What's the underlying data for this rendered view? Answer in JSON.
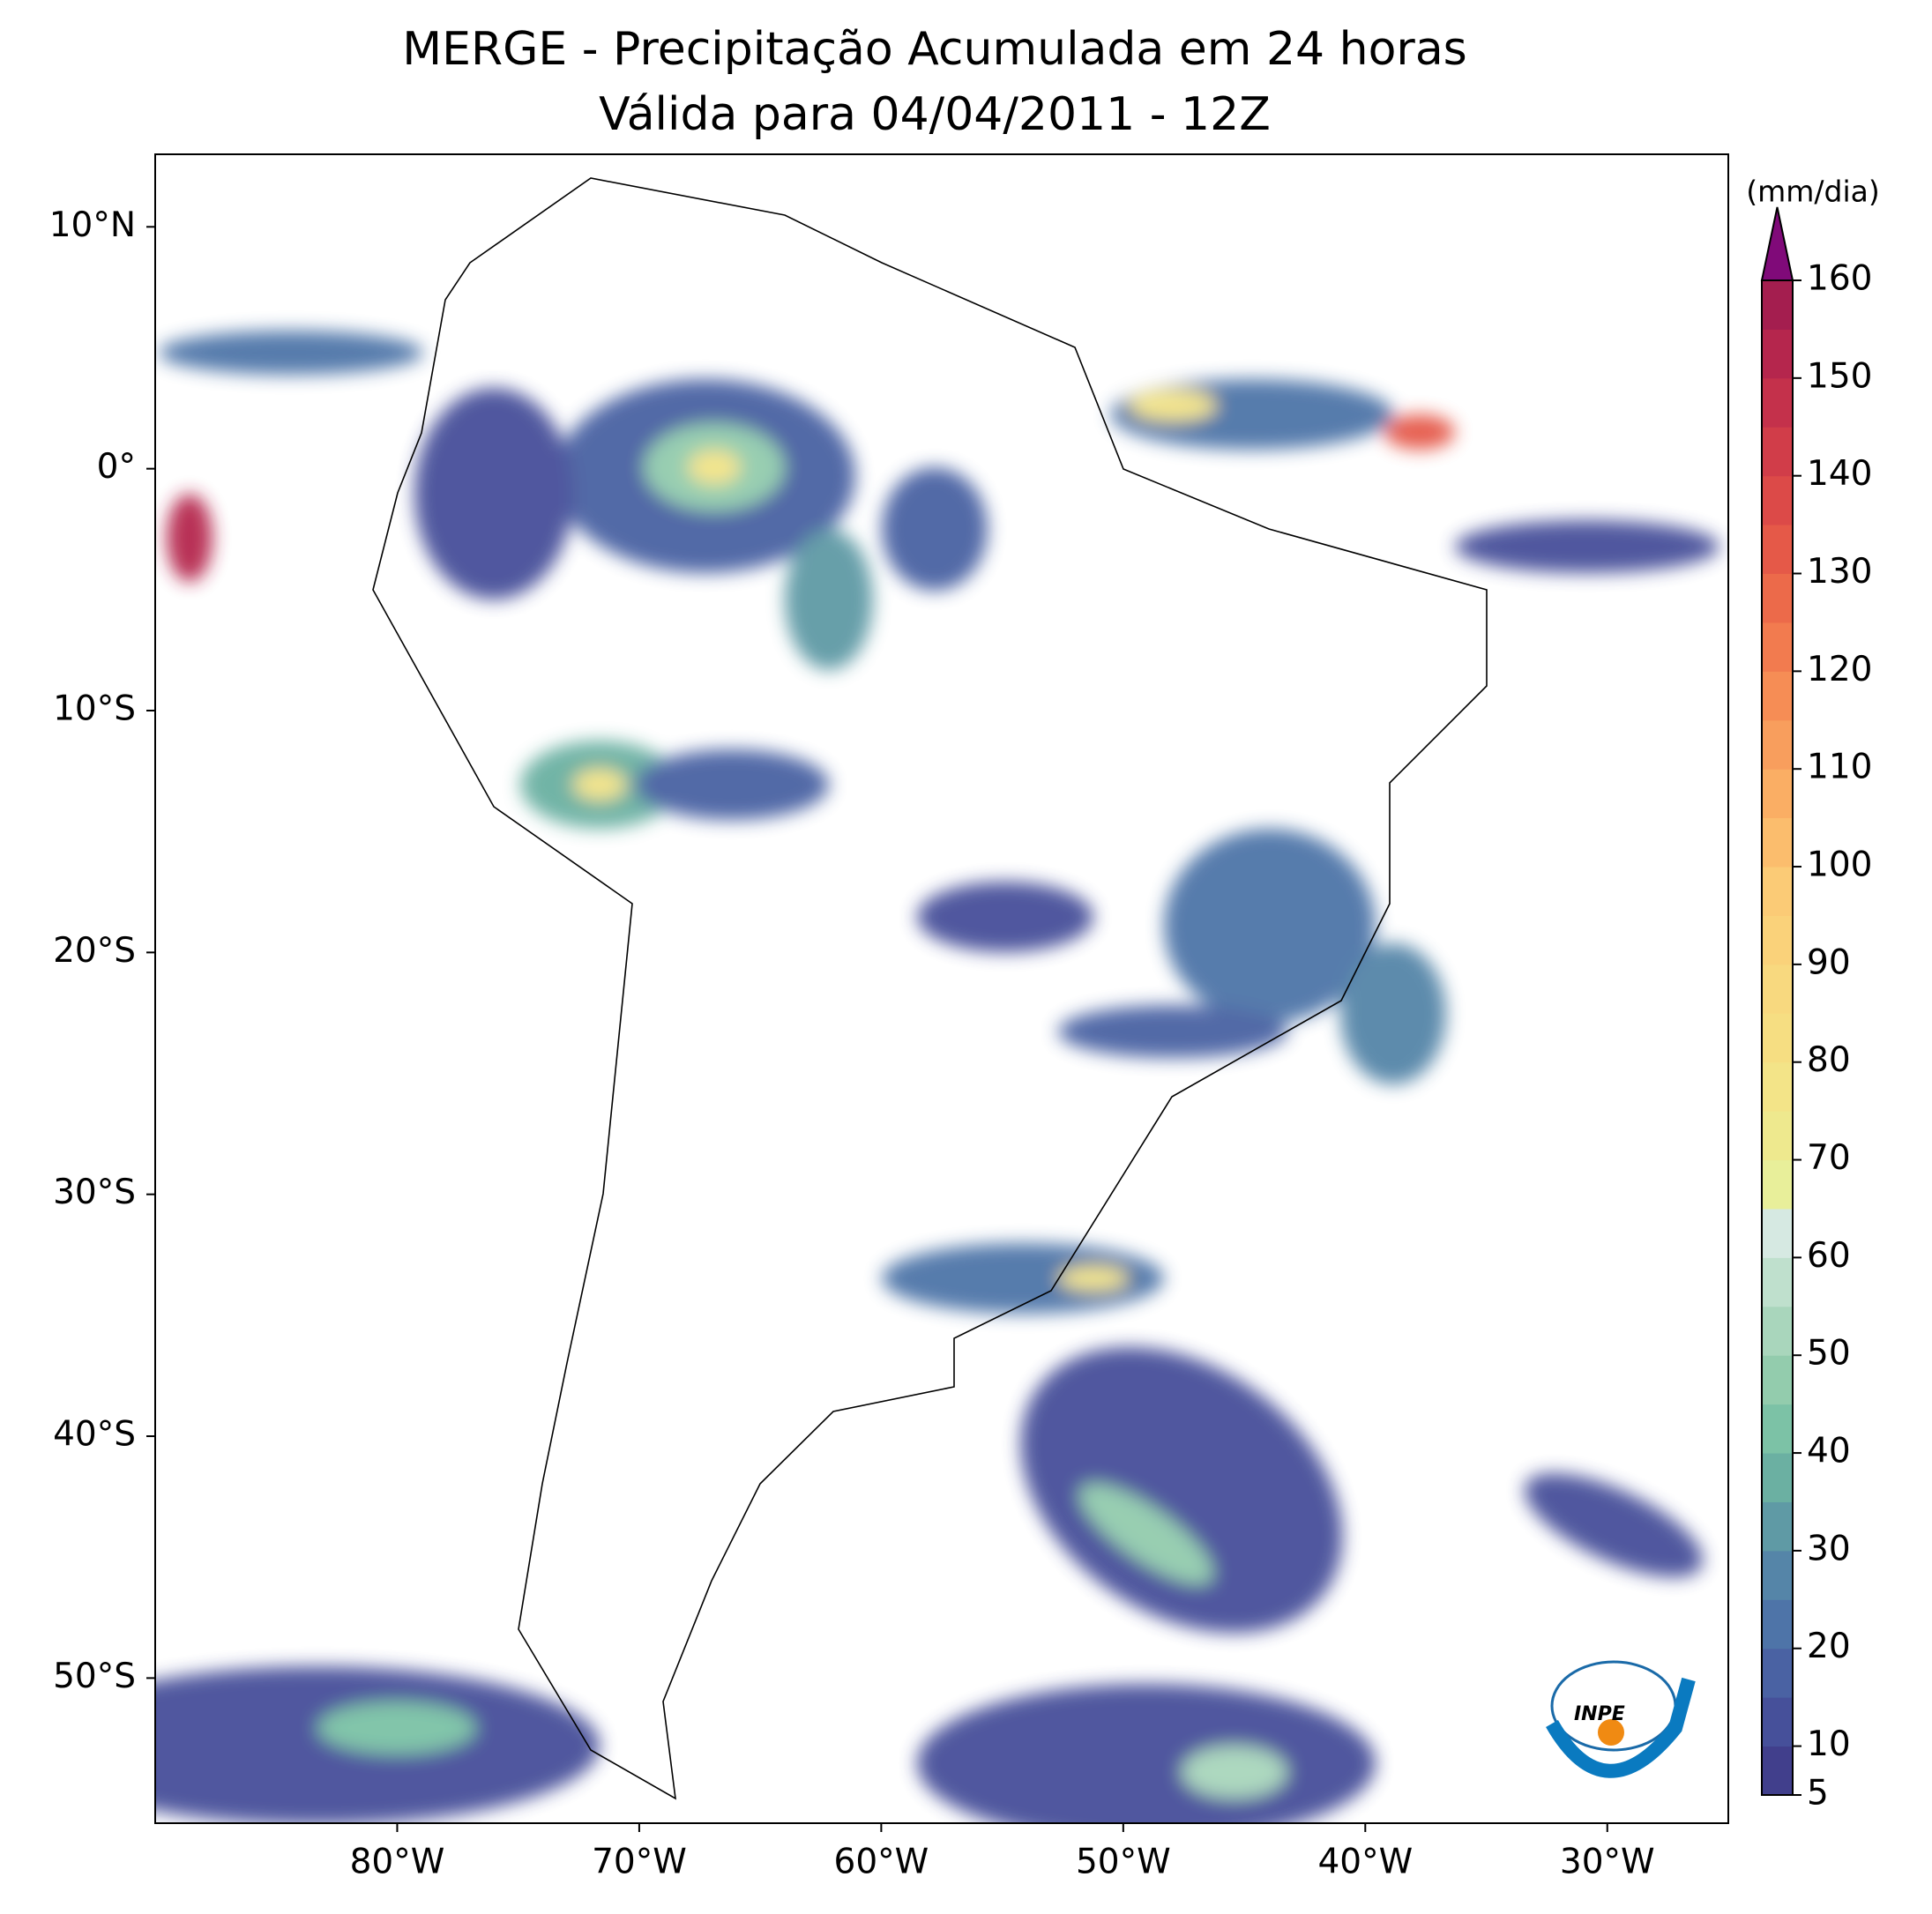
{
  "title": "MERGE - Precipitação Acumulada em 24 horas",
  "subtitle": "Válida para 04/04/2011 - 12Z",
  "map": {
    "xlim": [
      -90,
      -25
    ],
    "ylim": [
      -56,
      13
    ],
    "xticks": [
      {
        "value": -80,
        "label": "80°W"
      },
      {
        "value": -70,
        "label": "70°W"
      },
      {
        "value": -60,
        "label": "60°W"
      },
      {
        "value": -50,
        "label": "50°W"
      },
      {
        "value": -40,
        "label": "40°W"
      },
      {
        "value": -30,
        "label": "30°W"
      }
    ],
    "yticks": [
      {
        "value": 10,
        "label": "10°N"
      },
      {
        "value": 0,
        "label": "0°"
      },
      {
        "value": -10,
        "label": "10°S"
      },
      {
        "value": -20,
        "label": "20°S"
      },
      {
        "value": -30,
        "label": "30°S"
      },
      {
        "value": -40,
        "label": "40°S"
      },
      {
        "value": -50,
        "label": "50°S"
      }
    ]
  },
  "colorbar": {
    "unit": "(mm/dia)",
    "levels": [
      5,
      10,
      15,
      20,
      25,
      30,
      35,
      40,
      45,
      50,
      55,
      60,
      65,
      70,
      75,
      80,
      85,
      90,
      95,
      100,
      105,
      110,
      115,
      120,
      125,
      130,
      135,
      140,
      145,
      150,
      155,
      160
    ],
    "colors": [
      "#413f8c",
      "#46509a",
      "#4a62a3",
      "#4e74a8",
      "#5585a8",
      "#5f9aa5",
      "#6bb0a2",
      "#7cc2a6",
      "#93ccad",
      "#a9d6bc",
      "#bfe0cd",
      "#d6e9e2",
      "#e8ef9a",
      "#eee98e",
      "#f3e488",
      "#f6de82",
      "#f8d97f",
      "#fad27a",
      "#fbcb76",
      "#fbbd6d",
      "#faae64",
      "#f89e5d",
      "#f68d55",
      "#f27b4f",
      "#ec6a4a",
      "#e55948",
      "#dc4a48",
      "#d13d49",
      "#c4314b",
      "#b5264d",
      "#a41e4f"
    ],
    "extend_color": "#800a79",
    "ticks": [
      5,
      10,
      20,
      30,
      40,
      50,
      60,
      70,
      80,
      90,
      100,
      110,
      120,
      130,
      140,
      150,
      160
    ]
  },
  "logo": "INPE"
}
